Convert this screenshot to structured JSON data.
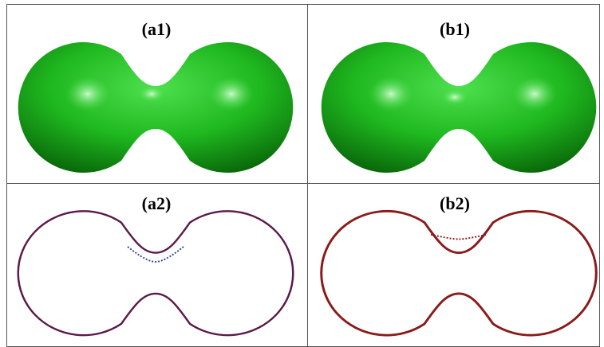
{
  "panels": [
    {
      "label": "(a1)"
    },
    {
      "label": "(b1)"
    },
    {
      "label": "(a2)"
    },
    {
      "label": "(b2)"
    }
  ]
}
